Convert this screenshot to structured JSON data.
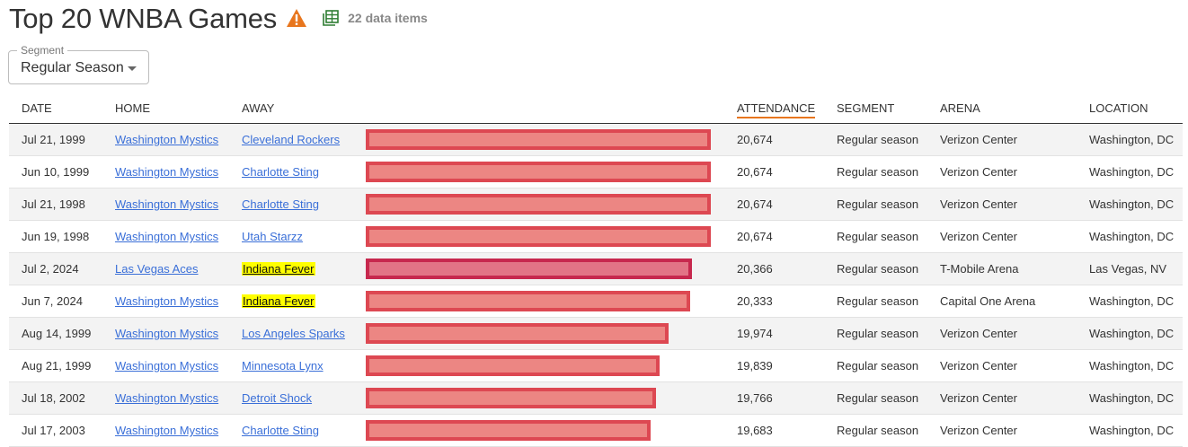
{
  "header": {
    "title": "Top 20 WNBA Games",
    "data_count": "22 data items"
  },
  "segment": {
    "label": "Segment",
    "value": "Regular Season"
  },
  "table": {
    "columns": {
      "date": "DATE",
      "home": "HOME",
      "away": "AWAY",
      "attendance": "ATTENDANCE",
      "segment": "SEGMENT",
      "arena": "ARENA",
      "location": "LOCATION"
    },
    "max_attendance": 20674,
    "rows": [
      {
        "date": "Jul 21, 1999",
        "home": "Washington Mystics",
        "away": "Cleveland Rockers",
        "away_highlight": false,
        "attendance": "20,674",
        "attendance_value": 20674,
        "segment": "Regular season",
        "arena": "Verizon Center",
        "location": "Washington, DC"
      },
      {
        "date": "Jun 10, 1999",
        "home": "Washington Mystics",
        "away": "Charlotte Sting",
        "away_highlight": false,
        "attendance": "20,674",
        "attendance_value": 20674,
        "segment": "Regular season",
        "arena": "Verizon Center",
        "location": "Washington, DC"
      },
      {
        "date": "Jul 21, 1998",
        "home": "Washington Mystics",
        "away": "Charlotte Sting",
        "away_highlight": false,
        "attendance": "20,674",
        "attendance_value": 20674,
        "segment": "Regular season",
        "arena": "Verizon Center",
        "location": "Washington, DC"
      },
      {
        "date": "Jun 19, 1998",
        "home": "Washington Mystics",
        "away": "Utah Starzz",
        "away_highlight": false,
        "attendance": "20,674",
        "attendance_value": 20674,
        "segment": "Regular season",
        "arena": "Verizon Center",
        "location": "Washington, DC"
      },
      {
        "date": "Jul 2, 2024",
        "home": "Las Vegas Aces",
        "away": "Indiana Fever",
        "away_highlight": true,
        "attendance": "20,366",
        "attendance_value": 20366,
        "segment": "Regular season",
        "arena": "T-Mobile Arena",
        "location": "Las Vegas, NV",
        "focus": true
      },
      {
        "date": "Jun 7, 2024",
        "home": "Washington Mystics",
        "away": "Indiana Fever",
        "away_highlight": true,
        "attendance": "20,333",
        "attendance_value": 20333,
        "segment": "Regular season",
        "arena": "Capital One Arena",
        "location": "Washington, DC"
      },
      {
        "date": "Aug 14, 1999",
        "home": "Washington Mystics",
        "away": "Los Angeles Sparks",
        "away_highlight": false,
        "attendance": "19,974",
        "attendance_value": 19974,
        "segment": "Regular season",
        "arena": "Verizon Center",
        "location": "Washington, DC"
      },
      {
        "date": "Aug 21, 1999",
        "home": "Washington Mystics",
        "away": "Minnesota Lynx",
        "away_highlight": false,
        "attendance": "19,839",
        "attendance_value": 19839,
        "segment": "Regular season",
        "arena": "Verizon Center",
        "location": "Washington, DC"
      },
      {
        "date": "Jul 18, 2002",
        "home": "Washington Mystics",
        "away": "Detroit Shock",
        "away_highlight": false,
        "attendance": "19,766",
        "attendance_value": 19766,
        "segment": "Regular season",
        "arena": "Verizon Center",
        "location": "Washington, DC"
      },
      {
        "date": "Jul 17, 2003",
        "home": "Washington Mystics",
        "away": "Charlotte Sting",
        "away_highlight": false,
        "attendance": "19,683",
        "attendance_value": 19683,
        "segment": "Regular season",
        "arena": "Verizon Center",
        "location": "Washington, DC"
      }
    ]
  },
  "icons": {
    "warning": "warning-icon",
    "data": "table-data-icon"
  },
  "colors": {
    "accent": "#e8761e",
    "bar_fill": "#ec8683",
    "bar_border": "#dd4852",
    "link": "#3a6fd8",
    "highlight": "#ffff00"
  }
}
